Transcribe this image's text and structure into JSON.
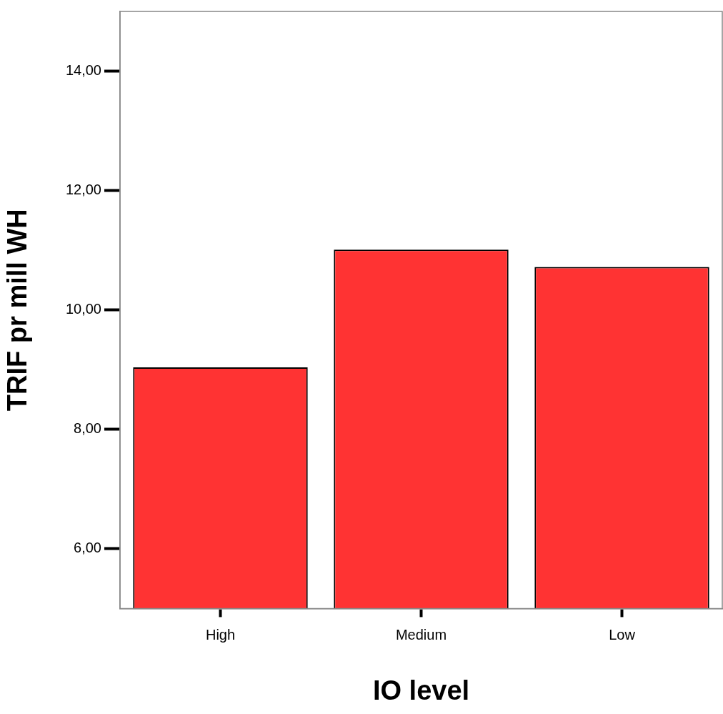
{
  "chart_data": {
    "type": "bar",
    "xlabel": "IO level",
    "ylabel": "TRIF pr mill WH",
    "categories": [
      "High",
      "Medium",
      "Low"
    ],
    "values": [
      9.04,
      11.01,
      10.72
    ],
    "color": "#ff3333",
    "ylim": [
      5,
      15
    ],
    "yticks": [
      {
        "value": 6,
        "label": "6,00"
      },
      {
        "value": 8,
        "label": "8,00"
      },
      {
        "value": 10,
        "label": "10,00"
      },
      {
        "value": 12,
        "label": "12,00"
      },
      {
        "value": 14,
        "label": "14,00"
      }
    ],
    "grid": false,
    "legend": false
  }
}
